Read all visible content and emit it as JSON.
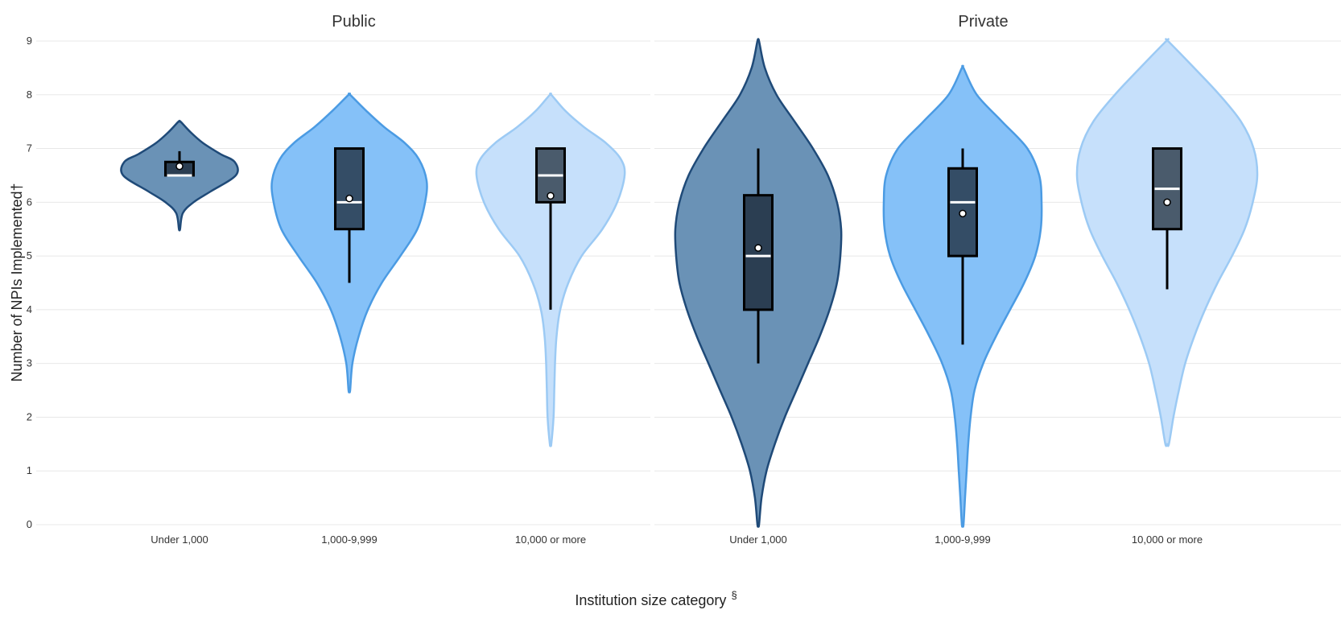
{
  "chart_data": {
    "type": "violin",
    "ylabel": "Number of NPIs Implemented†",
    "xlabel": "Institution size category",
    "xlabel_superscript": "§",
    "ylim": [
      0,
      9
    ],
    "yticks": [
      0,
      1,
      2,
      3,
      4,
      5,
      6,
      7,
      8,
      9
    ],
    "categories": [
      "Under 1,000",
      "1,000-9,999",
      "10,000 or more"
    ],
    "colors": {
      "Under 1,000": {
        "fill": "#6a92b6",
        "stroke": "#1f4a78"
      },
      "1,000-9,999": {
        "fill": "#85c1f8",
        "stroke": "#4b9be3"
      },
      "10,000 or more": {
        "fill": "#c6e0fb",
        "stroke": "#9ccaf4"
      },
      "box_fill": [
        "#2b3e52",
        "#344d66",
        "#4a5b6c"
      ]
    },
    "grid": true,
    "facets": [
      {
        "title": "Public",
        "groups": [
          {
            "category": "Under 1,000",
            "min": 5.5,
            "max": 7.5,
            "density": [
              [
                5.5,
                0.01
              ],
              [
                5.8,
                0.06
              ],
              [
                6.0,
                0.25
              ],
              [
                6.2,
                0.55
              ],
              [
                6.5,
                1.0
              ],
              [
                6.75,
                0.98
              ],
              [
                6.9,
                0.72
              ],
              [
                7.1,
                0.42
              ],
              [
                7.3,
                0.2
              ],
              [
                7.5,
                0.02
              ]
            ],
            "q1": 6.5,
            "median": 6.5,
            "q3": 6.75,
            "whisker_low": 6.5,
            "whisker_high": 6.95,
            "mean": 6.67
          },
          {
            "category": "1,000-9,999",
            "min": 2.5,
            "max": 8.0,
            "density": [
              [
                2.5,
                0.01
              ],
              [
                3.0,
                0.04
              ],
              [
                3.5,
                0.12
              ],
              [
                4.0,
                0.24
              ],
              [
                4.5,
                0.42
              ],
              [
                5.0,
                0.66
              ],
              [
                5.5,
                0.88
              ],
              [
                6.0,
                0.98
              ],
              [
                6.4,
                1.0
              ],
              [
                6.8,
                0.9
              ],
              [
                7.1,
                0.72
              ],
              [
                7.4,
                0.45
              ],
              [
                7.7,
                0.22
              ],
              [
                8.0,
                0.01
              ]
            ],
            "q1": 5.5,
            "median": 6.0,
            "q3": 7.0,
            "whisker_low": 4.5,
            "whisker_high": 7.0,
            "mean": 6.07
          },
          {
            "category": "10,000 or more",
            "min": 1.5,
            "max": 8.0,
            "density": [
              [
                1.5,
                0.01
              ],
              [
                2.0,
                0.04
              ],
              [
                2.5,
                0.05
              ],
              [
                3.0,
                0.06
              ],
              [
                3.5,
                0.08
              ],
              [
                4.0,
                0.13
              ],
              [
                4.5,
                0.24
              ],
              [
                5.0,
                0.42
              ],
              [
                5.5,
                0.7
              ],
              [
                6.0,
                0.9
              ],
              [
                6.5,
                1.0
              ],
              [
                6.8,
                0.95
              ],
              [
                7.1,
                0.75
              ],
              [
                7.4,
                0.45
              ],
              [
                7.7,
                0.2
              ],
              [
                8.0,
                0.01
              ]
            ],
            "q1": 6.0,
            "median": 6.5,
            "q3": 7.0,
            "whisker_low": 4.0,
            "whisker_high": 7.0,
            "mean": 6.12
          }
        ]
      },
      {
        "title": "Private",
        "groups": [
          {
            "category": "Under 1,000",
            "min": 0.0,
            "max": 9.0,
            "density": [
              [
                0.0,
                0.01
              ],
              [
                0.5,
                0.04
              ],
              [
                1.0,
                0.1
              ],
              [
                1.5,
                0.2
              ],
              [
                2.0,
                0.32
              ],
              [
                2.5,
                0.46
              ],
              [
                3.0,
                0.6
              ],
              [
                3.5,
                0.74
              ],
              [
                4.0,
                0.86
              ],
              [
                4.5,
                0.95
              ],
              [
                5.0,
                0.99
              ],
              [
                5.5,
                1.0
              ],
              [
                6.0,
                0.95
              ],
              [
                6.5,
                0.84
              ],
              [
                7.0,
                0.66
              ],
              [
                7.5,
                0.44
              ],
              [
                8.0,
                0.22
              ],
              [
                8.5,
                0.08
              ],
              [
                9.0,
                0.01
              ]
            ],
            "q1": 4.0,
            "median": 5.0,
            "q3": 6.13,
            "whisker_low": 3.0,
            "whisker_high": 7.0,
            "mean": 5.15
          },
          {
            "category": "1,000-9,999",
            "min": 0.0,
            "max": 8.5,
            "density": [
              [
                0.0,
                0.01
              ],
              [
                0.5,
                0.03
              ],
              [
                1.0,
                0.05
              ],
              [
                1.5,
                0.07
              ],
              [
                2.0,
                0.1
              ],
              [
                2.5,
                0.15
              ],
              [
                3.0,
                0.26
              ],
              [
                3.5,
                0.42
              ],
              [
                4.0,
                0.6
              ],
              [
                4.5,
                0.78
              ],
              [
                5.0,
                0.92
              ],
              [
                5.5,
                0.99
              ],
              [
                6.0,
                1.0
              ],
              [
                6.5,
                0.97
              ],
              [
                7.0,
                0.82
              ],
              [
                7.5,
                0.5
              ],
              [
                8.0,
                0.18
              ],
              [
                8.5,
                0.01
              ]
            ],
            "q1": 5.0,
            "median": 6.0,
            "q3": 6.63,
            "whisker_low": 3.35,
            "whisker_high": 7.0,
            "mean": 5.79
          },
          {
            "category": "10,000 or more",
            "min": 1.5,
            "max": 9.0,
            "density": [
              [
                1.5,
                0.02
              ],
              [
                2.0,
                0.07
              ],
              [
                2.5,
                0.13
              ],
              [
                3.0,
                0.2
              ],
              [
                3.5,
                0.3
              ],
              [
                4.0,
                0.42
              ],
              [
                4.5,
                0.56
              ],
              [
                5.0,
                0.72
              ],
              [
                5.5,
                0.86
              ],
              [
                6.0,
                0.95
              ],
              [
                6.5,
                1.0
              ],
              [
                7.0,
                0.96
              ],
              [
                7.5,
                0.82
              ],
              [
                8.0,
                0.58
              ],
              [
                8.5,
                0.3
              ],
              [
                9.0,
                0.01
              ]
            ],
            "q1": 5.5,
            "median": 6.25,
            "q3": 7.0,
            "whisker_low": 4.38,
            "whisker_high": 7.0,
            "mean": 6.0
          }
        ]
      }
    ]
  }
}
